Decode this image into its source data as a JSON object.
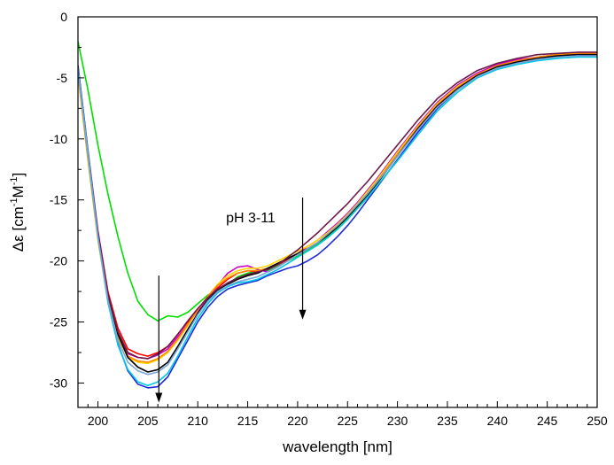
{
  "chart_data": {
    "type": "line",
    "title": "",
    "xlabel": "wavelength [nm]",
    "ylabel_parts": [
      "Δε [cm",
      "-1",
      "M",
      "-1",
      "]"
    ],
    "xlim": [
      198,
      250
    ],
    "ylim": [
      -32,
      0
    ],
    "xticks": [
      200,
      205,
      210,
      215,
      220,
      225,
      230,
      235,
      240,
      245,
      250
    ],
    "yticks": [
      0,
      -5,
      -10,
      -15,
      -20,
      -25,
      -30
    ],
    "grid": false,
    "legend": "none",
    "annotations": [
      {
        "text": "pH 3-11",
        "x": 215.3,
        "y": -16.4
      }
    ],
    "arrows": [
      {
        "x": 206.1,
        "y_start": -21.2,
        "y_end": -31.6
      },
      {
        "x": 220.5,
        "y_start": -14.8,
        "y_end": -24.8
      }
    ],
    "x": [
      198,
      199,
      200,
      201,
      202,
      203,
      204,
      205,
      206,
      207,
      208,
      209,
      210,
      211,
      212,
      213,
      214,
      215,
      216,
      217,
      218,
      219,
      220,
      221,
      222,
      223,
      224,
      225,
      226,
      227,
      228,
      229,
      230,
      232,
      234,
      236,
      238,
      240,
      242,
      244,
      246,
      248,
      250
    ],
    "series": [
      {
        "color": "#00e000",
        "values": [
          -2.0,
          -6.0,
          -10.5,
          -14.5,
          -18.0,
          -21.0,
          -23.3,
          -24.4,
          -24.9,
          -24.5,
          -24.6,
          -24.2,
          -23.5,
          -22.8,
          -22.3,
          -21.9,
          -21.3,
          -21.0,
          -20.8,
          -20.8,
          -20.4,
          -20.0,
          -19.6,
          -19.1,
          -18.6,
          -18.0,
          -17.3,
          -16.5,
          -15.6,
          -14.6,
          -13.6,
          -12.5,
          -11.4,
          -9.2,
          -7.3,
          -5.9,
          -4.8,
          -4.1,
          -3.7,
          -3.4,
          -3.2,
          -3.1,
          -3.0
        ]
      },
      {
        "color": "#ff0000",
        "values": [
          -4.0,
          -11.0,
          -17.5,
          -22.5,
          -25.5,
          -27.2,
          -27.6,
          -27.8,
          -27.5,
          -27.0,
          -26.0,
          -25.0,
          -24.0,
          -23.0,
          -22.2,
          -21.5,
          -21.0,
          -20.8,
          -20.9,
          -20.7,
          -20.3,
          -19.9,
          -19.5,
          -19.0,
          -18.5,
          -17.8,
          -17.1,
          -16.3,
          -15.4,
          -14.4,
          -13.4,
          -12.3,
          -11.2,
          -9.1,
          -7.2,
          -5.8,
          -4.7,
          -4.0,
          -3.6,
          -3.3,
          -3.1,
          -3.0,
          -3.0
        ]
      },
      {
        "color": "#cc00cc",
        "values": [
          -4.5,
          -11.5,
          -18.0,
          -23.0,
          -26.0,
          -27.6,
          -27.9,
          -28.0,
          -27.7,
          -27.2,
          -26.2,
          -25.2,
          -24.1,
          -23.1,
          -22.0,
          -21.0,
          -20.5,
          -20.4,
          -20.7,
          -20.9,
          -20.5,
          -20.0,
          -19.4,
          -18.8,
          -18.3,
          -17.6,
          -16.9,
          -16.1,
          -15.2,
          -14.2,
          -13.2,
          -12.1,
          -11.0,
          -8.9,
          -7.0,
          -5.6,
          -4.6,
          -3.9,
          -3.5,
          -3.3,
          -3.1,
          -2.9,
          -2.9
        ]
      },
      {
        "color": "#ffd700",
        "values": [
          -4.8,
          -11.8,
          -18.3,
          -23.3,
          -26.3,
          -27.9,
          -28.3,
          -28.4,
          -28.1,
          -27.5,
          -26.5,
          -25.3,
          -24.0,
          -22.9,
          -21.9,
          -21.2,
          -20.8,
          -20.6,
          -20.6,
          -20.4,
          -20.0,
          -19.6,
          -19.2,
          -18.8,
          -18.3,
          -17.7,
          -17.0,
          -16.2,
          -15.3,
          -14.3,
          -13.3,
          -12.2,
          -11.1,
          -9.0,
          -7.1,
          -5.7,
          -4.7,
          -4.0,
          -3.6,
          -3.3,
          -3.1,
          -3.0,
          -3.0
        ]
      },
      {
        "color": "#ff8800",
        "values": [
          -4.6,
          -11.6,
          -18.1,
          -23.2,
          -26.2,
          -27.8,
          -28.2,
          -28.3,
          -28.0,
          -27.4,
          -26.4,
          -25.2,
          -24.0,
          -22.9,
          -22.0,
          -21.4,
          -21.0,
          -20.8,
          -20.8,
          -20.6,
          -20.2,
          -19.8,
          -19.4,
          -19.0,
          -18.5,
          -17.9,
          -17.2,
          -16.4,
          -15.5,
          -14.5,
          -13.5,
          -12.4,
          -11.3,
          -9.1,
          -7.2,
          -5.8,
          -4.7,
          -4.0,
          -3.6,
          -3.3,
          -3.1,
          -3.0,
          -3.0
        ]
      },
      {
        "color": "#000000",
        "values": [
          -4.2,
          -11.3,
          -17.8,
          -22.8,
          -26.0,
          -27.9,
          -28.7,
          -29.1,
          -28.9,
          -28.3,
          -27.0,
          -25.6,
          -24.3,
          -23.2,
          -22.4,
          -21.9,
          -21.5,
          -21.2,
          -21.0,
          -20.6,
          -20.2,
          -19.8,
          -19.4,
          -19.0,
          -18.5,
          -17.9,
          -17.2,
          -16.4,
          -15.5,
          -14.6,
          -13.6,
          -12.5,
          -11.4,
          -9.2,
          -7.3,
          -5.9,
          -4.8,
          -4.1,
          -3.7,
          -3.4,
          -3.2,
          -3.1,
          -3.1
        ]
      },
      {
        "color": "#6b1a4a",
        "values": [
          -4.3,
          -11.2,
          -17.7,
          -22.7,
          -25.8,
          -27.5,
          -27.9,
          -28.0,
          -27.6,
          -27.0,
          -26.0,
          -24.9,
          -23.9,
          -23.0,
          -22.3,
          -21.8,
          -21.4,
          -21.1,
          -20.9,
          -20.7,
          -20.3,
          -19.7,
          -19.1,
          -18.4,
          -17.7,
          -16.9,
          -16.1,
          -15.3,
          -14.4,
          -13.5,
          -12.5,
          -11.5,
          -10.5,
          -8.5,
          -6.7,
          -5.4,
          -4.4,
          -3.8,
          -3.4,
          -3.1,
          -3.0,
          -2.9,
          -2.9
        ]
      },
      {
        "color": "#1e2bd8",
        "values": [
          -4.0,
          -11.0,
          -17.8,
          -23.2,
          -26.8,
          -29.0,
          -30.1,
          -30.4,
          -30.3,
          -29.5,
          -28.0,
          -26.5,
          -25.0,
          -23.8,
          -22.9,
          -22.3,
          -22.0,
          -21.8,
          -21.6,
          -21.2,
          -20.9,
          -20.6,
          -20.4,
          -20.0,
          -19.5,
          -18.8,
          -18.0,
          -17.1,
          -16.1,
          -15.0,
          -13.9,
          -12.8,
          -11.7,
          -9.5,
          -7.5,
          -6.0,
          -4.9,
          -4.2,
          -3.8,
          -3.5,
          -3.3,
          -3.2,
          -3.2
        ]
      },
      {
        "color": "#00c8e8",
        "values": [
          -4.2,
          -11.2,
          -18.0,
          -23.4,
          -26.9,
          -28.9,
          -29.9,
          -30.2,
          -29.9,
          -29.2,
          -27.8,
          -26.2,
          -24.7,
          -23.5,
          -22.6,
          -22.1,
          -21.8,
          -21.7,
          -21.5,
          -21.1,
          -20.7,
          -20.2,
          -19.7,
          -19.2,
          -18.7,
          -18.1,
          -17.4,
          -16.6,
          -15.7,
          -14.8,
          -13.8,
          -12.8,
          -11.8,
          -9.7,
          -7.7,
          -6.2,
          -5.0,
          -4.3,
          -3.9,
          -3.6,
          -3.4,
          -3.3,
          -3.3
        ]
      },
      {
        "color": "#7aa7d6",
        "values": [
          -4.4,
          -11.4,
          -18.1,
          -23.2,
          -26.5,
          -28.3,
          -29.0,
          -29.3,
          -29.1,
          -28.5,
          -27.2,
          -25.8,
          -24.4,
          -23.3,
          -22.5,
          -22.0,
          -21.7,
          -21.5,
          -21.3,
          -20.9,
          -20.5,
          -20.0,
          -19.5,
          -19.0,
          -18.5,
          -17.8,
          -17.1,
          -16.3,
          -15.4,
          -14.5,
          -13.5,
          -12.5,
          -11.4,
          -9.3,
          -7.4,
          -6.0,
          -4.9,
          -4.2,
          -3.8,
          -3.5,
          -3.3,
          -3.2,
          -3.2
        ]
      }
    ]
  }
}
